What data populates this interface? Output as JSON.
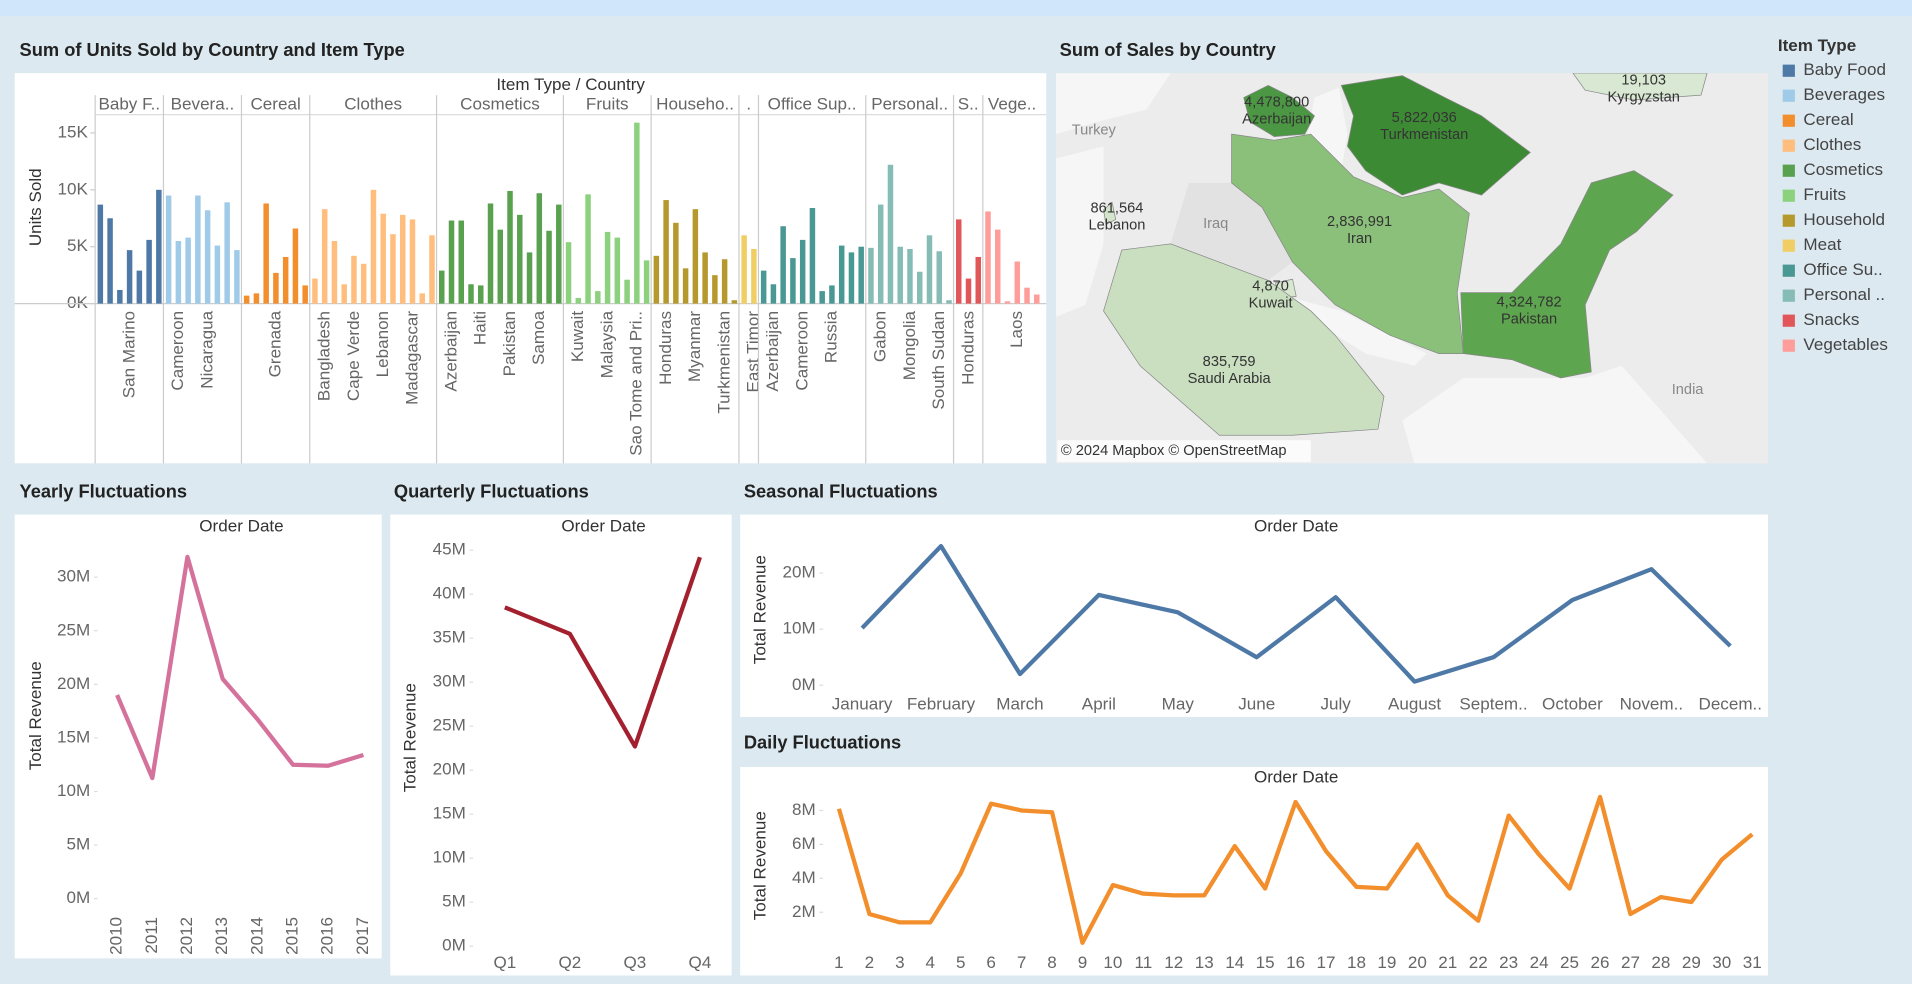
{
  "chart_data": [
    {
      "type": "bar",
      "title": "Sum of Units Sold by Country and Item Type",
      "header": "Item Type  /  Country",
      "y_label": "Units Sold",
      "ylim": [
        0,
        16500
      ],
      "yticks": [
        {
          "value": 0,
          "label": "0K"
        },
        {
          "value": 5000,
          "label": "5K"
        },
        {
          "value": 10000,
          "label": "10K"
        },
        {
          "value": 15000,
          "label": "15K"
        }
      ],
      "legend": {
        "title": "Item Type",
        "names": [
          "Baby Food",
          "Beverages",
          "Cereal",
          "Clothes",
          "Cosmetics",
          "Fruits",
          "Household",
          "Meat",
          "Office Su..",
          "Personal ..",
          "Snacks",
          "Vegetables"
        ],
        "colors": [
          "#4e79a7",
          "#a0cbe8",
          "#f28e2b",
          "#ffbe7d",
          "#59a14f",
          "#8cd17d",
          "#b6992d",
          "#f1ce63",
          "#499894",
          "#86bcb6",
          "#e15759",
          "#ff9d9a"
        ]
      },
      "groups": [
        {
          "name": "Baby F..",
          "categories": [
            null,
            null,
            null,
            "San Marino",
            null,
            null,
            null
          ],
          "values": [
            8700,
            7500,
            1200,
            4700,
            2900,
            5600,
            10000
          ]
        },
        {
          "name": "Bevera..",
          "categories": [
            null,
            "Cameroon",
            null,
            null,
            "Nicaragua",
            null,
            null,
            null
          ],
          "values": [
            9500,
            5500,
            5800,
            9500,
            8200,
            5100,
            8900,
            4700
          ]
        },
        {
          "name": "Cereal",
          "categories": [
            null,
            null,
            null,
            "Grenada",
            null,
            null,
            null
          ],
          "values": [
            700,
            900,
            8800,
            2700,
            4100,
            6600,
            1600
          ]
        },
        {
          "name": "Clothes",
          "categories": [
            null,
            "Bangladesh",
            null,
            null,
            "Cape Verde",
            null,
            null,
            "Lebanon",
            null,
            null,
            "Madagascar",
            null,
            null
          ],
          "values": [
            2200,
            8300,
            5500,
            1700,
            4200,
            3500,
            10000,
            7900,
            6100,
            7800,
            7400,
            900,
            6000
          ]
        },
        {
          "name": "Cosmetics",
          "categories": [
            null,
            "Azerbaijan",
            null,
            null,
            "Haiti",
            null,
            null,
            "Pakistan",
            null,
            null,
            "Samoa",
            null,
            null
          ],
          "values": [
            2900,
            7300,
            7300,
            1700,
            1600,
            8800,
            6500,
            9900,
            7800,
            4500,
            9700,
            6400,
            8700
          ]
        },
        {
          "name": "Fruits",
          "categories": [
            null,
            "Kuwait",
            null,
            null,
            "Malaysia",
            null,
            null,
            "Sao Tome and Pri..",
            null
          ],
          "values": [
            5400,
            500,
            9600,
            1100,
            6300,
            5800,
            2100,
            15900,
            3800
          ]
        },
        {
          "name": "Househo..",
          "categories": [
            null,
            "Honduras",
            null,
            null,
            "Myanmar",
            null,
            null,
            "Turkmenistan",
            null
          ],
          "values": [
            4200,
            9100,
            7100,
            3100,
            8300,
            4500,
            2500,
            3900,
            300
          ]
        },
        {
          "name": ".",
          "categories": [
            null,
            "East Timor"
          ],
          "values": [
            6000,
            4800
          ]
        },
        {
          "name": "Office Sup..",
          "categories": [
            null,
            "Azerbaijan",
            null,
            null,
            "Cameroon",
            null,
            null,
            "Russia",
            null,
            null,
            null
          ],
          "values": [
            2900,
            1700,
            6800,
            4000,
            5600,
            8400,
            1100,
            1600,
            5100,
            4500,
            5000
          ]
        },
        {
          "name": "Personal..",
          "categories": [
            null,
            "Gabon",
            null,
            null,
            "Mongolia",
            null,
            null,
            "South Sudan",
            null
          ],
          "values": [
            4900,
            8700,
            12200,
            5000,
            4800,
            2800,
            6000,
            4600,
            300
          ]
        },
        {
          "name": "S..",
          "categories": [
            null,
            "Honduras",
            null
          ],
          "values": [
            7400,
            2200,
            4100
          ]
        },
        {
          "name": "Vege..",
          "categories": [
            null,
            null,
            null,
            "Laos",
            null,
            null
          ],
          "values": [
            8100,
            6500,
            200,
            3700,
            1400,
            800
          ]
        }
      ]
    },
    {
      "type": "map",
      "title": "Sum of Sales by Country",
      "categories": [
        "Azerbaijan",
        "Turkmenistan",
        "Kyrgyzstan",
        "Lebanon",
        "Iran",
        "Kuwait",
        "Pakistan",
        "Saudi Arabia"
      ],
      "values": [
        4478800,
        5822036,
        19103,
        861564,
        2836991,
        4870,
        4324782,
        835759
      ],
      "value_labels": [
        "4,478,800",
        "5,822,036",
        "19,103",
        "861,564",
        "2,836,991",
        "4,870",
        "4,324,782",
        "835,759"
      ],
      "colors": [
        "#4c9743",
        "#3d8a35",
        "#d9e8d2",
        "#d3e4cb",
        "#8bc07a",
        "#d8e8d0",
        "#5ea54f",
        "#c9dfc0"
      ],
      "places": [
        "Turkey",
        "Iraq",
        "India"
      ],
      "attribution": "© 2024 Mapbox © OpenStreetMap"
    },
    {
      "type": "line",
      "title": "Yearly Fluctuations",
      "header": "Order Date",
      "y_label": "Total Revenue",
      "color": "#d4729c",
      "rotate_x": true,
      "categories": [
        "2010",
        "2011",
        "2012",
        "2013",
        "2014",
        "2015",
        "2016",
        "2017"
      ],
      "values": [
        19000000,
        11250000,
        31900000,
        20500000,
        16700000,
        12500000,
        12400000,
        13400000
      ],
      "ylim": [
        0,
        33000000
      ],
      "yticks": [
        {
          "value": 0,
          "label": "0M"
        },
        {
          "value": 5000000,
          "label": "5M"
        },
        {
          "value": 10000000,
          "label": "10M"
        },
        {
          "value": 15000000,
          "label": "15M"
        },
        {
          "value": 20000000,
          "label": "20M"
        },
        {
          "value": 25000000,
          "label": "25M"
        },
        {
          "value": 30000000,
          "label": "30M"
        }
      ]
    },
    {
      "type": "line",
      "title": "Quarterly Fluctuations",
      "header": "Order Date",
      "y_label": "Total Revenue",
      "color": "#a3202e",
      "categories": [
        "Q1",
        "Q2",
        "Q3",
        "Q4"
      ],
      "values": [
        38500000,
        35500000,
        22700000,
        44200000
      ],
      "ylim": [
        0,
        46000000
      ],
      "yticks": [
        {
          "value": 0,
          "label": "0M"
        },
        {
          "value": 5000000,
          "label": "5M"
        },
        {
          "value": 10000000,
          "label": "10M"
        },
        {
          "value": 15000000,
          "label": "15M"
        },
        {
          "value": 20000000,
          "label": "20M"
        },
        {
          "value": 25000000,
          "label": "25M"
        },
        {
          "value": 30000000,
          "label": "30M"
        },
        {
          "value": 35000000,
          "label": "35M"
        },
        {
          "value": 40000000,
          "label": "40M"
        },
        {
          "value": 45000000,
          "label": "45M"
        }
      ]
    },
    {
      "type": "line",
      "title": "Seasonal Fluctuations",
      "header": "Order Date",
      "y_label": "Total Revenue",
      "color": "#4e79a7",
      "categories": [
        "January",
        "February",
        "March",
        "April",
        "May",
        "June",
        "July",
        "August",
        "Septem..",
        "October",
        "Novem..",
        "Decem.."
      ],
      "values": [
        10200000,
        24800000,
        2000000,
        16100000,
        13000000,
        5000000,
        15700000,
        650000,
        5000000,
        15200000,
        20700000,
        7000000
      ],
      "ylim": [
        -1000000,
        26000000
      ],
      "yticks": [
        {
          "value": 0,
          "label": "0M"
        },
        {
          "value": 10000000,
          "label": "10M"
        },
        {
          "value": 20000000,
          "label": "20M"
        }
      ]
    },
    {
      "type": "line",
      "title": "Daily Fluctuations",
      "header": "Order Date",
      "y_label": "Total Revenue",
      "color": "#f28e2b",
      "categories": [
        "1",
        "2",
        "3",
        "4",
        "5",
        "6",
        "7",
        "8",
        "9",
        "10",
        "11",
        "12",
        "13",
        "14",
        "15",
        "16",
        "17",
        "18",
        "19",
        "20",
        "21",
        "22",
        "23",
        "24",
        "25",
        "26",
        "27",
        "28",
        "29",
        "30",
        "31"
      ],
      "values": [
        8100000,
        1900000,
        1400000,
        1400000,
        4300000,
        8400000,
        8000000,
        7900000,
        200000,
        3600000,
        3100000,
        3000000,
        3000000,
        5900000,
        3400000,
        8500000,
        5600000,
        3500000,
        3400000,
        6000000,
        3000000,
        1500000,
        7700000,
        5400000,
        3400000,
        8800000,
        1900000,
        2900000,
        2600000,
        5100000,
        6600000
      ],
      "ylim": [
        0,
        9200000
      ],
      "yticks": [
        {
          "value": 2000000,
          "label": "2M"
        },
        {
          "value": 4000000,
          "label": "4M"
        },
        {
          "value": 6000000,
          "label": "6M"
        },
        {
          "value": 8000000,
          "label": "8M"
        }
      ]
    }
  ]
}
